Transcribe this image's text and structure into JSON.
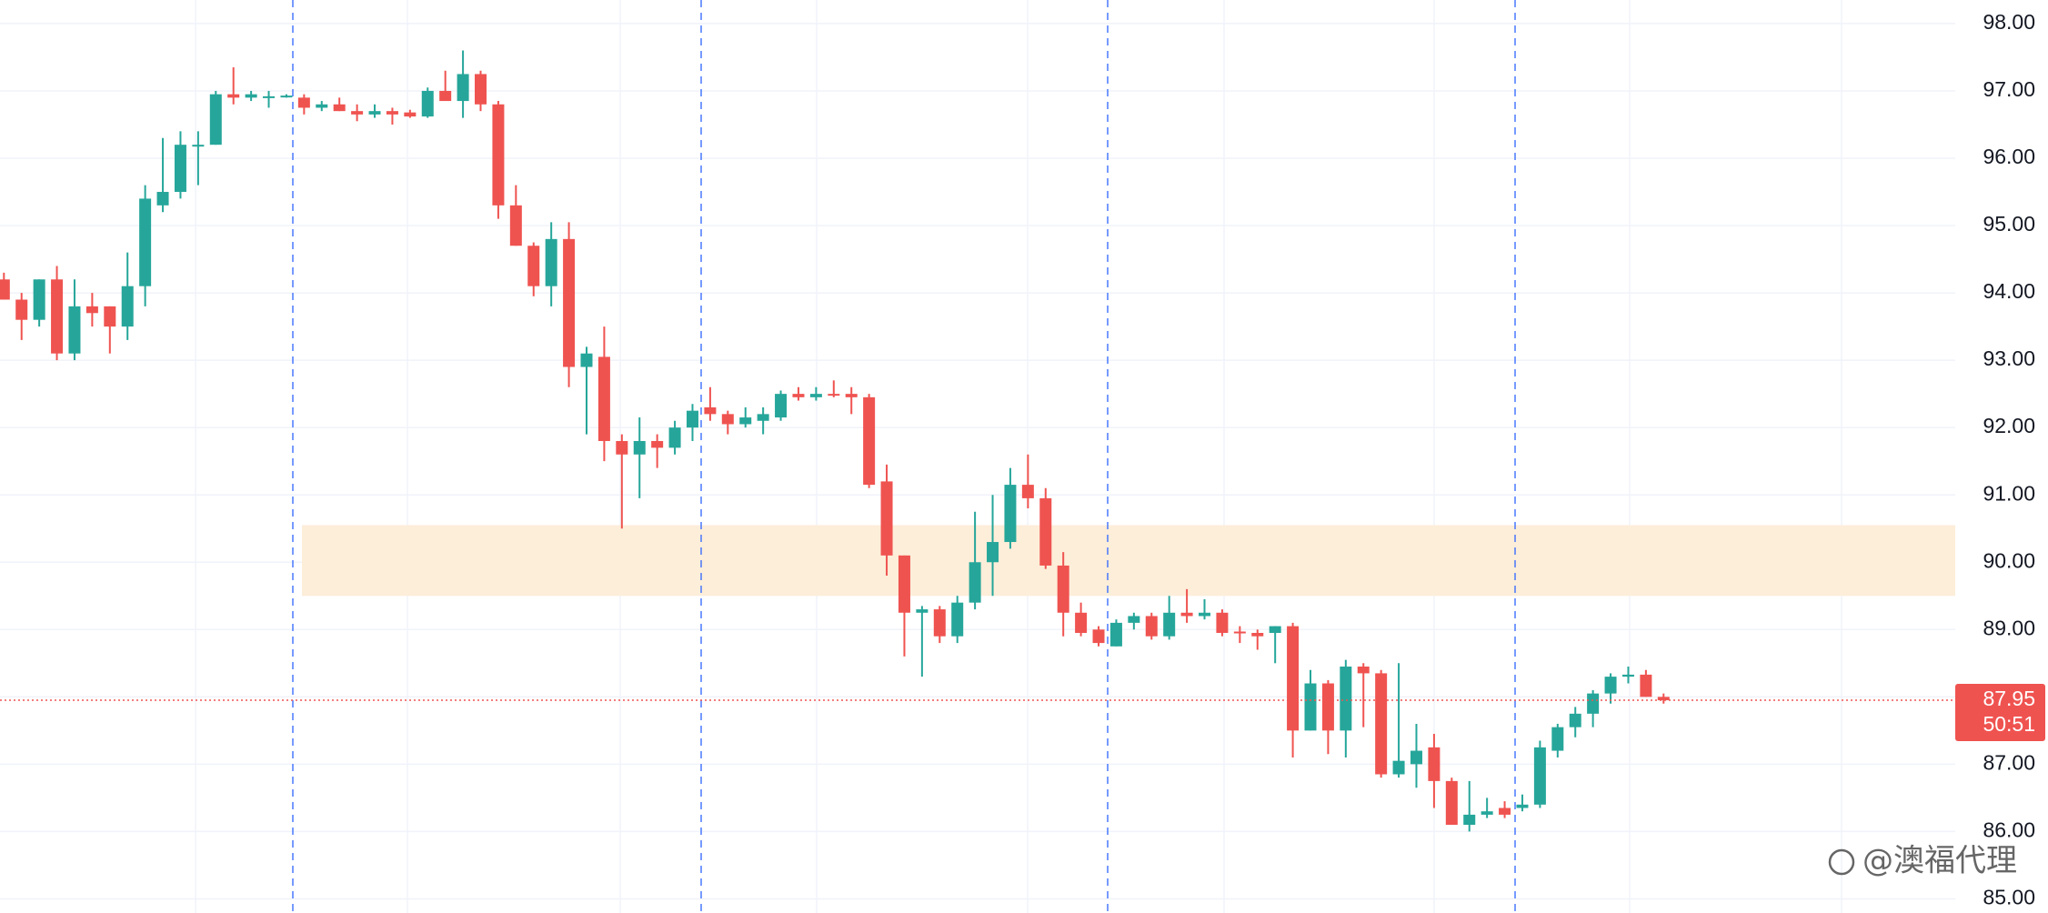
{
  "chart_data": {
    "type": "candlestick",
    "up_color": "#26a69a",
    "down_color": "#ef5350",
    "grid": true,
    "ylim": [
      84.79,
      98.35
    ],
    "yticks": [
      {
        "value": 98,
        "label": "98.00"
      },
      {
        "value": 97,
        "label": "97.00"
      },
      {
        "value": 96,
        "label": "96.00"
      },
      {
        "value": 95,
        "label": "95.00"
      },
      {
        "value": 94,
        "label": "94.00"
      },
      {
        "value": 93,
        "label": "93.00"
      },
      {
        "value": 92,
        "label": "92.00"
      },
      {
        "value": 91,
        "label": "91.00"
      },
      {
        "value": 90,
        "label": "90.00"
      },
      {
        "value": 89,
        "label": "89.00"
      },
      {
        "value": 88,
        "label": "88.00"
      },
      {
        "value": 87,
        "label": "87.00"
      },
      {
        "value": 86,
        "label": "86.00"
      },
      {
        "value": 85,
        "label": "85.00"
      }
    ],
    "zone": {
      "from": 89.5,
      "to": 90.55,
      "color": "#fdeed9"
    },
    "last_price": 87.95,
    "last_price_color": "#ef5350",
    "countdown": "50:51",
    "watermark": "@澳福代理",
    "open": [
      94.2,
      93.9,
      93.6,
      94.2,
      93.1,
      93.8,
      93.8,
      93.5,
      94.1,
      95.3,
      95.5,
      96.2,
      96.2,
      96.95,
      96.9,
      96.9,
      96.93,
      96.9,
      96.75,
      96.8,
      96.7,
      96.65,
      96.7,
      96.68,
      96.62,
      97.0,
      96.85,
      97.25,
      96.8,
      95.3,
      94.7,
      94.1,
      94.8,
      92.9,
      93.05,
      91.8,
      91.6,
      91.8,
      91.7,
      92.0,
      92.3,
      92.2,
      92.05,
      92.1,
      92.15,
      92.5,
      92.45,
      92.5,
      92.5,
      92.45,
      91.2,
      90.1,
      89.25,
      89.3,
      88.9,
      89.4,
      90.0,
      90.3,
      91.15,
      90.95,
      89.95,
      89.25,
      89.0,
      88.75,
      89.1,
      89.2,
      88.9,
      89.25,
      89.2,
      89.25,
      88.97,
      88.95,
      88.95,
      89.05,
      87.5,
      88.2,
      87.5,
      88.45,
      88.35,
      86.85,
      87.0,
      87.25,
      86.75,
      86.1,
      86.25,
      86.35,
      86.35,
      86.4,
      87.2,
      87.55,
      87.75,
      88.05,
      88.3,
      88.33,
      88.0
    ],
    "high": [
      94.3,
      94.0,
      94.2,
      94.4,
      94.2,
      94.0,
      93.8,
      94.6,
      95.6,
      96.3,
      96.4,
      96.4,
      97.0,
      97.35,
      97.0,
      97.0,
      96.95,
      96.95,
      96.85,
      96.9,
      96.8,
      96.8,
      96.75,
      96.72,
      97.05,
      97.3,
      97.6,
      97.3,
      96.85,
      95.6,
      94.75,
      95.05,
      95.05,
      93.2,
      93.5,
      91.9,
      92.15,
      91.9,
      92.1,
      92.35,
      92.6,
      92.25,
      92.3,
      92.3,
      92.55,
      92.6,
      92.6,
      92.7,
      92.6,
      92.5,
      91.45,
      90.1,
      89.35,
      89.35,
      89.5,
      90.75,
      91.0,
      91.4,
      91.6,
      91.1,
      90.15,
      89.4,
      89.05,
      89.15,
      89.25,
      89.25,
      89.5,
      89.6,
      89.45,
      89.3,
      89.05,
      89.0,
      89.05,
      89.1,
      88.4,
      88.25,
      88.55,
      88.5,
      88.4,
      88.5,
      87.6,
      87.45,
      86.8,
      86.75,
      86.5,
      86.45,
      86.55,
      87.35,
      87.6,
      87.85,
      88.1,
      88.35,
      88.45,
      88.4,
      88.05
    ],
    "low": [
      93.9,
      93.3,
      93.5,
      93.0,
      93.0,
      93.5,
      93.1,
      93.3,
      93.8,
      95.2,
      95.4,
      95.6,
      96.2,
      96.8,
      96.85,
      96.75,
      96.9,
      96.65,
      96.7,
      96.7,
      96.55,
      96.6,
      96.5,
      96.6,
      96.6,
      96.9,
      96.6,
      96.7,
      95.1,
      94.7,
      93.95,
      93.8,
      92.6,
      91.9,
      91.5,
      90.5,
      90.95,
      91.4,
      91.6,
      91.8,
      92.1,
      91.9,
      92.0,
      91.9,
      92.1,
      92.4,
      92.4,
      92.45,
      92.2,
      91.1,
      89.8,
      88.6,
      88.3,
      88.8,
      88.8,
      89.3,
      89.5,
      90.2,
      90.8,
      89.9,
      88.9,
      88.9,
      88.75,
      88.75,
      89.0,
      88.85,
      88.85,
      89.1,
      89.15,
      88.9,
      88.8,
      88.7,
      88.5,
      87.1,
      87.5,
      87.15,
      87.1,
      87.55,
      86.8,
      86.8,
      86.65,
      86.35,
      86.1,
      86.0,
      86.2,
      86.2,
      86.3,
      86.35,
      87.1,
      87.4,
      87.55,
      87.9,
      88.2,
      88.0,
      87.9
    ],
    "close": [
      93.9,
      93.6,
      94.2,
      93.1,
      93.8,
      93.7,
      93.5,
      94.1,
      95.4,
      95.5,
      96.2,
      96.2,
      96.95,
      96.9,
      96.95,
      96.92,
      96.93,
      96.75,
      96.8,
      96.7,
      96.65,
      96.7,
      96.65,
      96.62,
      97.0,
      96.85,
      97.25,
      96.8,
      95.3,
      94.7,
      94.1,
      94.8,
      92.9,
      93.1,
      91.8,
      91.6,
      91.8,
      91.7,
      92.0,
      92.25,
      92.2,
      92.05,
      92.15,
      92.2,
      92.5,
      92.45,
      92.5,
      92.48,
      92.45,
      91.15,
      90.1,
      89.25,
      89.3,
      88.9,
      89.4,
      90.0,
      90.3,
      91.15,
      90.95,
      89.95,
      89.25,
      88.95,
      88.8,
      89.1,
      89.2,
      88.9,
      89.25,
      89.2,
      89.25,
      88.95,
      88.95,
      88.9,
      89.05,
      87.5,
      88.2,
      87.5,
      88.45,
      88.35,
      86.85,
      87.05,
      87.2,
      86.75,
      86.1,
      86.25,
      86.3,
      86.25,
      86.4,
      87.25,
      87.55,
      87.75,
      88.05,
      88.3,
      88.33,
      88.0,
      87.95
    ]
  }
}
